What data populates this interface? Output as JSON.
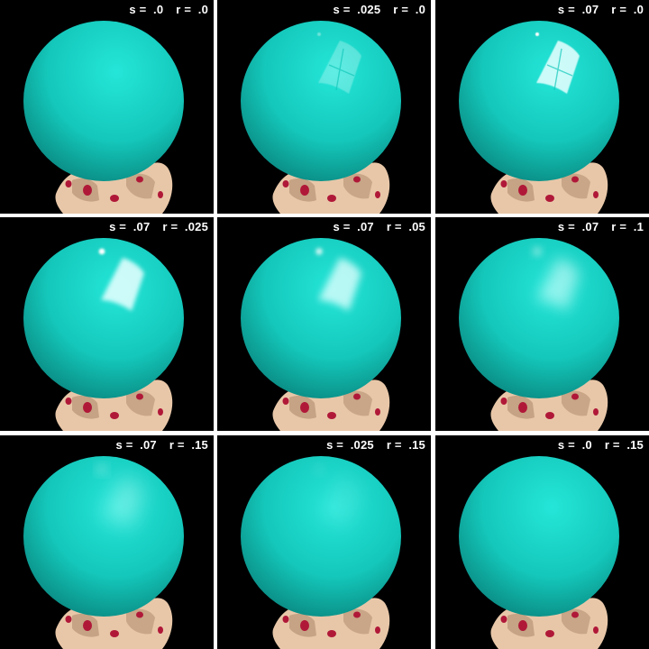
{
  "panels": [
    {
      "s_label": "s =  .0",
      "r_label": "r =  .0",
      "specular": 0,
      "roughness": 0
    },
    {
      "s_label": "s =  .025",
      "r_label": "r =  .0",
      "specular": 0.025,
      "roughness": 0
    },
    {
      "s_label": "s =  .07",
      "r_label": "r =  .0",
      "specular": 0.07,
      "roughness": 0
    },
    {
      "s_label": "s =  .07",
      "r_label": "r =  .025",
      "specular": 0.07,
      "roughness": 0.025
    },
    {
      "s_label": "s =  .07",
      "r_label": "r =  .05",
      "specular": 0.07,
      "roughness": 0.05
    },
    {
      "s_label": "s =  .07",
      "r_label": "r =  .1",
      "specular": 0.07,
      "roughness": 0.1
    },
    {
      "s_label": "s =  .07",
      "r_label": "r =  .15",
      "specular": 0.07,
      "roughness": 0.15
    },
    {
      "s_label": "s =  .025",
      "r_label": "r =  .15",
      "specular": 0.025,
      "roughness": 0.15
    },
    {
      "s_label": "s =  .0",
      "r_label": "r =  .15",
      "specular": 0,
      "roughness": 0.15
    }
  ],
  "colors": {
    "background": "#000000",
    "divider": "#ffffff",
    "sphere_light": "#24e6d8",
    "sphere_mid": "#14c8bb",
    "sphere_dark": "#087f78",
    "hand_skin": "#e8c7a8",
    "hand_shadow": "#a88566",
    "nail_polish": "#b01838",
    "label_text": "#ffffff"
  }
}
